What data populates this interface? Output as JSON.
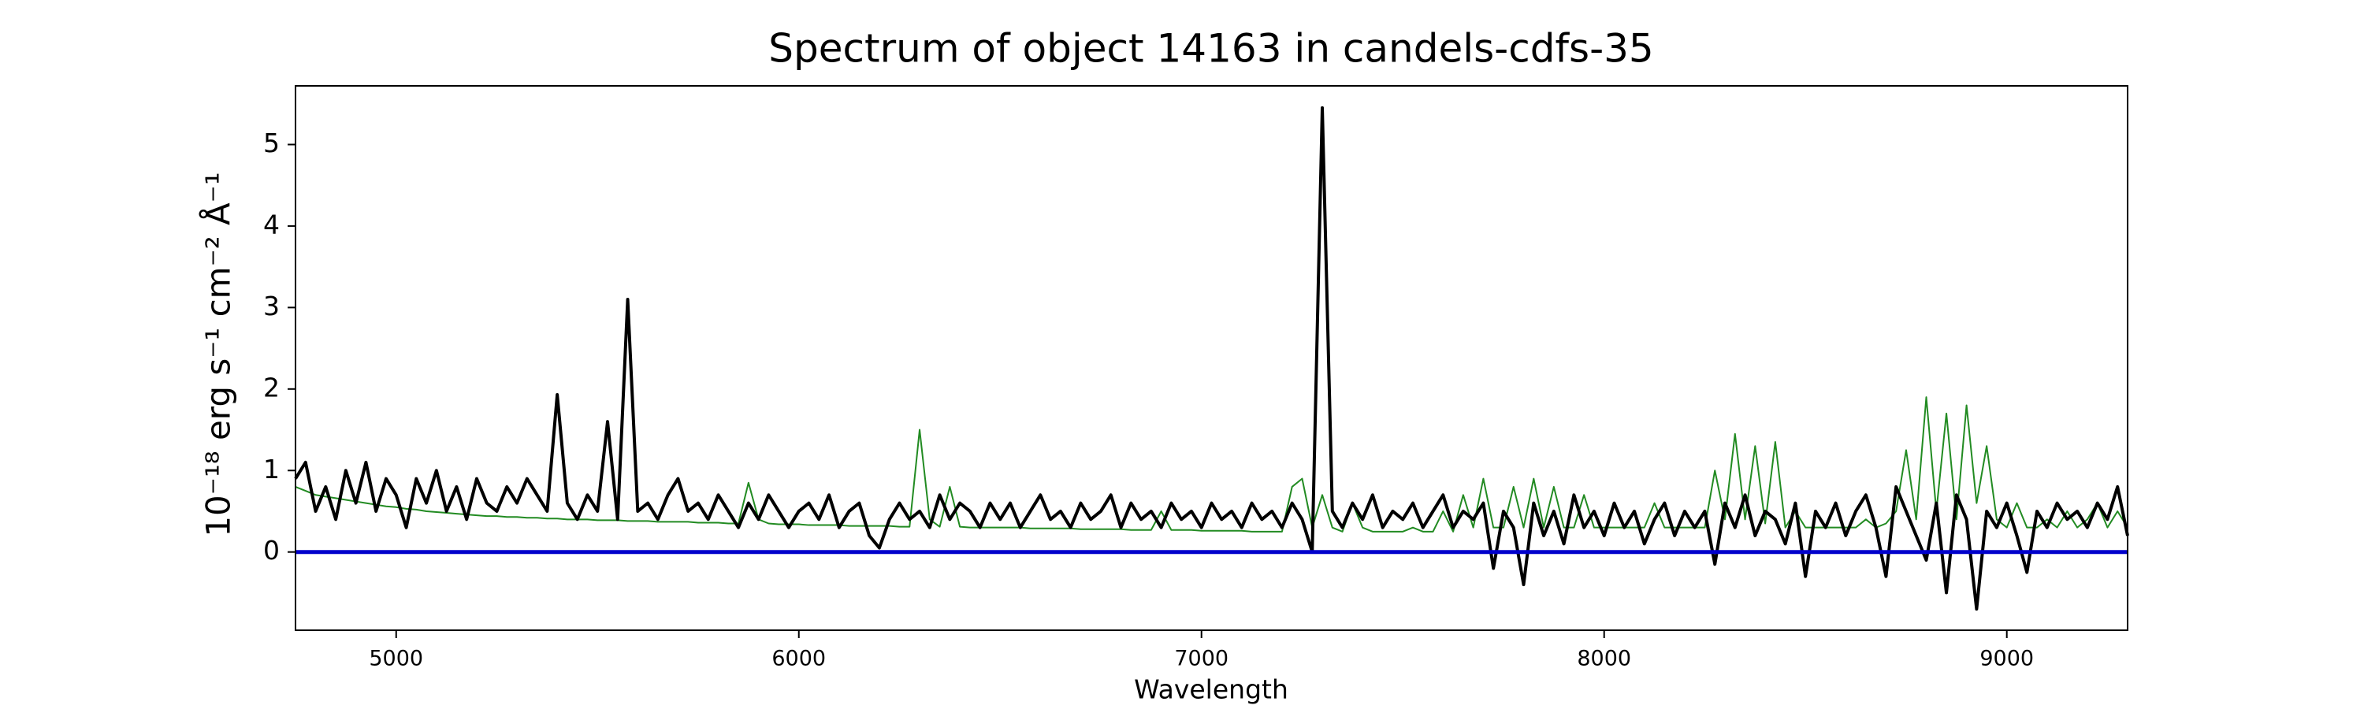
{
  "chart_data": {
    "type": "line",
    "title": "Spectrum of object 14163 in candels-cdfs-35",
    "xlabel": "Wavelength",
    "ylabel": "10⁻¹⁸ erg s⁻¹ cm⁻² Å⁻¹",
    "xlim": [
      4750,
      9300
    ],
    "ylim": [
      -0.96,
      5.72
    ],
    "xticks": [
      5000,
      6000,
      7000,
      8000,
      9000
    ],
    "yticks": [
      0,
      1,
      2,
      3,
      4,
      5
    ],
    "hlines": [
      {
        "value": 0,
        "color": "#0000cc"
      }
    ],
    "x": [
      4750,
      4775,
      4800,
      4825,
      4850,
      4875,
      4900,
      4925,
      4950,
      4975,
      5000,
      5025,
      5050,
      5075,
      5100,
      5125,
      5150,
      5175,
      5200,
      5225,
      5250,
      5275,
      5300,
      5325,
      5350,
      5375,
      5400,
      5425,
      5450,
      5475,
      5500,
      5525,
      5550,
      5575,
      5600,
      5625,
      5650,
      5675,
      5700,
      5725,
      5750,
      5775,
      5800,
      5825,
      5850,
      5875,
      5900,
      5925,
      5950,
      5975,
      6000,
      6025,
      6050,
      6075,
      6100,
      6125,
      6150,
      6175,
      6200,
      6225,
      6250,
      6275,
      6300,
      6325,
      6350,
      6375,
      6400,
      6425,
      6450,
      6475,
      6500,
      6525,
      6550,
      6575,
      6600,
      6625,
      6650,
      6675,
      6700,
      6725,
      6750,
      6775,
      6800,
      6825,
      6850,
      6875,
      6900,
      6925,
      6950,
      6975,
      7000,
      7025,
      7050,
      7075,
      7100,
      7125,
      7150,
      7175,
      7200,
      7225,
      7250,
      7275,
      7300,
      7325,
      7350,
      7375,
      7400,
      7425,
      7450,
      7475,
      7500,
      7525,
      7550,
      7575,
      7600,
      7625,
      7650,
      7675,
      7700,
      7725,
      7750,
      7775,
      7800,
      7825,
      7850,
      7875,
      7900,
      7925,
      7950,
      7975,
      8000,
      8025,
      8050,
      8075,
      8100,
      8125,
      8150,
      8175,
      8200,
      8225,
      8250,
      8275,
      8300,
      8325,
      8350,
      8375,
      8400,
      8425,
      8450,
      8475,
      8500,
      8525,
      8550,
      8575,
      8600,
      8625,
      8650,
      8675,
      8700,
      8725,
      8750,
      8775,
      8800,
      8825,
      8850,
      8875,
      8900,
      8925,
      8950,
      8975,
      9000,
      9025,
      9050,
      9075,
      9100,
      9125,
      9150,
      9175,
      9200,
      9225,
      9250,
      9275,
      9300
    ],
    "series": [
      {
        "color": "#228b22",
        "width": 2,
        "values": [
          0.8,
          0.75,
          0.7,
          0.68,
          0.66,
          0.64,
          0.62,
          0.6,
          0.58,
          0.56,
          0.55,
          0.53,
          0.52,
          0.5,
          0.49,
          0.48,
          0.47,
          0.46,
          0.45,
          0.44,
          0.44,
          0.43,
          0.43,
          0.42,
          0.42,
          0.41,
          0.41,
          0.4,
          0.4,
          0.4,
          0.39,
          0.39,
          0.39,
          0.38,
          0.38,
          0.38,
          0.37,
          0.37,
          0.37,
          0.37,
          0.36,
          0.36,
          0.36,
          0.35,
          0.35,
          0.85,
          0.4,
          0.35,
          0.34,
          0.34,
          0.34,
          0.33,
          0.33,
          0.33,
          0.33,
          0.32,
          0.32,
          0.32,
          0.32,
          0.32,
          0.31,
          0.31,
          1.5,
          0.4,
          0.31,
          0.8,
          0.31,
          0.3,
          0.3,
          0.3,
          0.3,
          0.3,
          0.3,
          0.29,
          0.29,
          0.29,
          0.29,
          0.29,
          0.28,
          0.28,
          0.28,
          0.28,
          0.28,
          0.27,
          0.27,
          0.27,
          0.5,
          0.27,
          0.27,
          0.27,
          0.26,
          0.26,
          0.26,
          0.26,
          0.26,
          0.25,
          0.25,
          0.25,
          0.25,
          0.8,
          0.9,
          0.3,
          0.7,
          0.3,
          0.25,
          0.6,
          0.3,
          0.25,
          0.25,
          0.25,
          0.25,
          0.3,
          0.25,
          0.25,
          0.5,
          0.25,
          0.7,
          0.3,
          0.9,
          0.3,
          0.3,
          0.8,
          0.3,
          0.9,
          0.3,
          0.8,
          0.3,
          0.3,
          0.7,
          0.3,
          0.3,
          0.3,
          0.3,
          0.3,
          0.3,
          0.6,
          0.3,
          0.3,
          0.3,
          0.3,
          0.3,
          1.0,
          0.4,
          1.45,
          0.4,
          1.3,
          0.35,
          1.35,
          0.3,
          0.5,
          0.3,
          0.3,
          0.3,
          0.3,
          0.3,
          0.3,
          0.4,
          0.3,
          0.35,
          0.5,
          1.25,
          0.4,
          1.9,
          0.5,
          1.7,
          0.4,
          1.8,
          0.6,
          1.3,
          0.4,
          0.3,
          0.6,
          0.3,
          0.3,
          0.4,
          0.3,
          0.5,
          0.3,
          0.4,
          0.6,
          0.3,
          0.5,
          0.3
        ]
      },
      {
        "color": "#000000",
        "width": 4,
        "values": [
          0.9,
          1.1,
          0.5,
          0.8,
          0.4,
          1.0,
          0.6,
          1.1,
          0.5,
          0.9,
          0.7,
          0.3,
          0.9,
          0.6,
          1.0,
          0.5,
          0.8,
          0.4,
          0.9,
          0.6,
          0.5,
          0.8,
          0.6,
          0.9,
          0.7,
          0.5,
          1.93,
          0.6,
          0.4,
          0.7,
          0.5,
          1.6,
          0.4,
          3.1,
          0.5,
          0.6,
          0.4,
          0.7,
          0.9,
          0.5,
          0.6,
          0.4,
          0.7,
          0.5,
          0.3,
          0.6,
          0.4,
          0.7,
          0.5,
          0.3,
          0.5,
          0.6,
          0.4,
          0.7,
          0.3,
          0.5,
          0.6,
          0.2,
          0.05,
          0.4,
          0.6,
          0.4,
          0.5,
          0.3,
          0.7,
          0.4,
          0.6,
          0.5,
          0.3,
          0.6,
          0.4,
          0.6,
          0.3,
          0.5,
          0.7,
          0.4,
          0.5,
          0.3,
          0.6,
          0.4,
          0.5,
          0.7,
          0.3,
          0.6,
          0.4,
          0.5,
          0.3,
          0.6,
          0.4,
          0.5,
          0.3,
          0.6,
          0.4,
          0.5,
          0.3,
          0.6,
          0.4,
          0.5,
          0.3,
          0.6,
          0.4,
          0.0,
          5.45,
          0.5,
          0.3,
          0.6,
          0.4,
          0.7,
          0.3,
          0.5,
          0.4,
          0.6,
          0.3,
          0.5,
          0.7,
          0.3,
          0.5,
          0.4,
          0.6,
          -0.2,
          0.5,
          0.3,
          -0.4,
          0.6,
          0.2,
          0.5,
          0.1,
          0.7,
          0.3,
          0.5,
          0.2,
          0.6,
          0.3,
          0.5,
          0.1,
          0.4,
          0.6,
          0.2,
          0.5,
          0.3,
          0.5,
          -0.15,
          0.6,
          0.3,
          0.7,
          0.2,
          0.5,
          0.4,
          0.1,
          0.6,
          -0.3,
          0.5,
          0.3,
          0.6,
          0.2,
          0.5,
          0.7,
          0.3,
          -0.3,
          0.8,
          0.5,
          0.2,
          -0.1,
          0.6,
          -0.5,
          0.7,
          0.4,
          -0.7,
          0.5,
          0.3,
          0.6,
          0.2,
          -0.25,
          0.5,
          0.3,
          0.6,
          0.4,
          0.5,
          0.3,
          0.6,
          0.4,
          0.8,
          0.2
        ]
      }
    ]
  }
}
